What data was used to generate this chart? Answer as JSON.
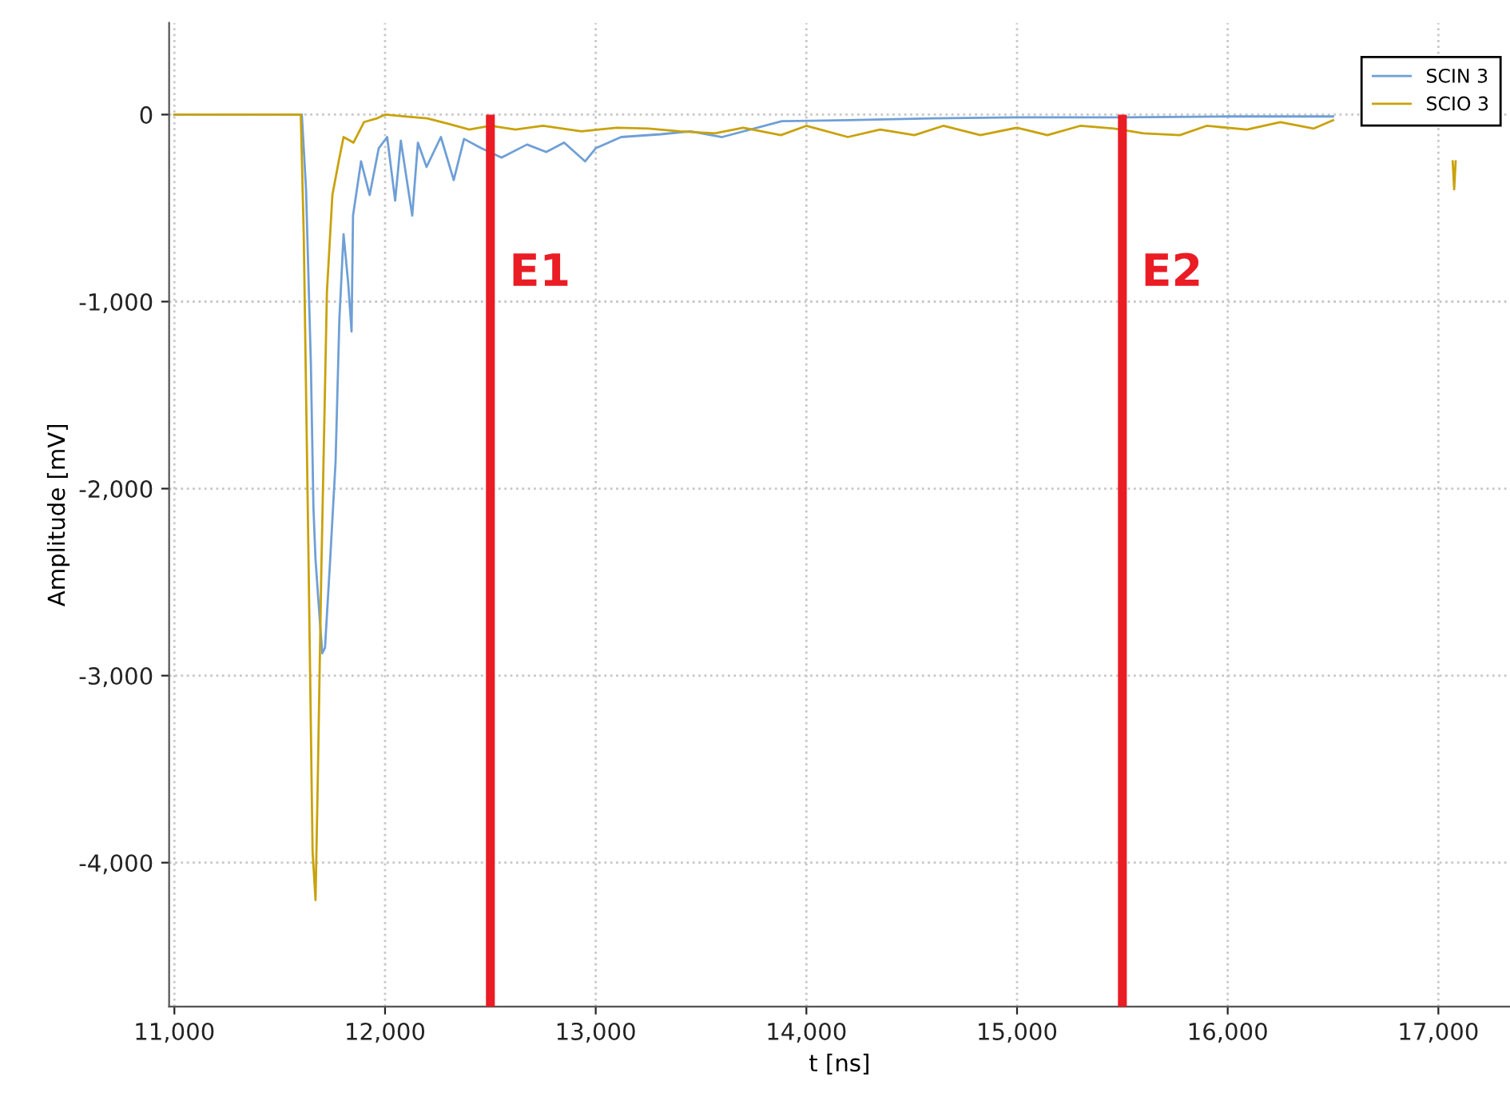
{
  "chart_data": {
    "type": "line",
    "xlabel": "t [ns]",
    "ylabel": "Amplitude [mV]",
    "xlim": [
      10975,
      17340
    ],
    "ylim": [
      -4770,
      490
    ],
    "xticks": [
      {
        "value": 11000,
        "label": "11,000"
      },
      {
        "value": 12000,
        "label": "12,000"
      },
      {
        "value": 13000,
        "label": "13,000"
      },
      {
        "value": 14000,
        "label": "14,000"
      },
      {
        "value": 15000,
        "label": "15,000"
      },
      {
        "value": 16000,
        "label": "16,000"
      },
      {
        "value": 17000,
        "label": "17,000"
      }
    ],
    "yticks": [
      0,
      {
        "value": -1000,
        "label": "-1,000"
      },
      {
        "value": -2000,
        "label": "-2,000"
      },
      {
        "value": -3000,
        "label": "-3,000"
      },
      {
        "value": -4000,
        "label": "-4,000"
      }
    ],
    "grid": true,
    "legend": "top right",
    "line_style": "solid",
    "marker": "none",
    "ref_lines": [
      {
        "axis": "x",
        "value": 12500,
        "label": "E1",
        "color": "#ea1c24"
      },
      {
        "axis": "x",
        "value": 15500,
        "label": "E2",
        "color": "#ea1c24"
      }
    ],
    "series": [
      {
        "name": "SCIN 3",
        "color": "#6f9fd6",
        "x": [
          11000,
          11605,
          11625,
          11648,
          11660,
          11670,
          11690,
          11702,
          11715,
          11738,
          11765,
          11783,
          11803,
          11825,
          11841,
          11848,
          11886,
          11927,
          11970,
          12010,
          12048,
          12075,
          12129,
          12156,
          12197,
          12265,
          12326,
          12375,
          12457,
          12553,
          12674,
          12765,
          12850,
          12950,
          13000,
          13121,
          13310,
          13450,
          13600,
          13884,
          14200,
          14600,
          15000,
          15500,
          16000,
          16500
        ],
        "values": [
          0,
          0,
          -400,
          -1340,
          -2100,
          -2380,
          -2700,
          -2880,
          -2850,
          -2410,
          -1860,
          -1100,
          -640,
          -900,
          -1160,
          -540,
          -250,
          -430,
          -180,
          -120,
          -460,
          -140,
          -540,
          -150,
          -280,
          -120,
          -350,
          -130,
          -180,
          -230,
          -160,
          -200,
          -150,
          -250,
          -180,
          -120,
          -105,
          -90,
          -120,
          -35,
          -30,
          -20,
          -15,
          -15,
          -10,
          -10
        ]
      },
      {
        "name": "SCIO 3",
        "color": "#c9a20a",
        "x": [
          11000,
          11600,
          11614,
          11636,
          11656,
          11670,
          11680,
          11697,
          11724,
          11750,
          11780,
          11803,
          11850,
          11900,
          11962,
          12000,
          12100,
          12200,
          12303,
          12400,
          12500,
          12619,
          12750,
          12932,
          13100,
          13250,
          13400,
          13566,
          13700,
          13879,
          14000,
          14197,
          14350,
          14513,
          14650,
          14826,
          15000,
          15144,
          15300,
          15460,
          15600,
          15773,
          15900,
          16091,
          16250,
          16407,
          16500,
          16800,
          17068,
          17075,
          17082
        ],
        "values": [
          0,
          0,
          -640,
          -2320,
          -3940,
          -4200,
          -3600,
          -2470,
          -950,
          -430,
          -250,
          -120,
          -150,
          -40,
          -20,
          0,
          -10,
          -20,
          -50,
          -80,
          -60,
          -80,
          -60,
          -90,
          -70,
          -75,
          -90,
          -100,
          -70,
          -110,
          -60,
          -120,
          -80,
          -110,
          -60,
          -110,
          -70,
          -110,
          -60,
          -75,
          -100,
          -110,
          -60,
          -80,
          -40,
          -75,
          -30,
          null,
          -250,
          -400,
          -250
        ]
      }
    ]
  }
}
